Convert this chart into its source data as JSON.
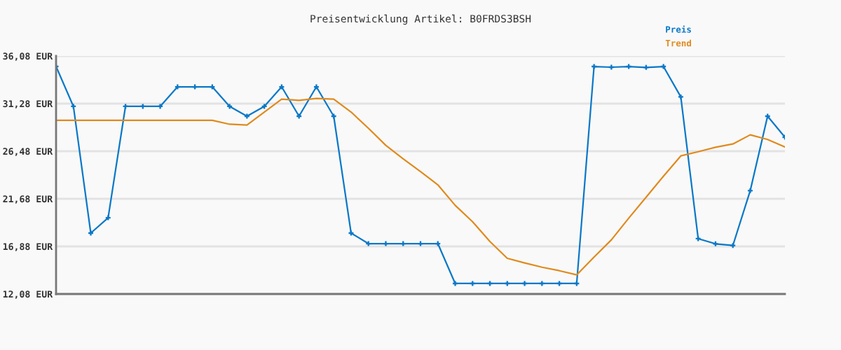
{
  "chart_data": {
    "type": "line",
    "title": "Preisentwicklung Artikel: B0FRDS3BSH",
    "categories": [
      null,
      null,
      null,
      null,
      null,
      null,
      null,
      null,
      null,
      null,
      null,
      null,
      null,
      null,
      null,
      null,
      null,
      null,
      null,
      null,
      null,
      null,
      null,
      null,
      null,
      null,
      null,
      null,
      null,
      null,
      null,
      null,
      null,
      null,
      null,
      null,
      null,
      null,
      null,
      null,
      null,
      null,
      null
    ],
    "series": [
      {
        "name": "Preis",
        "color": "#0a78c8",
        "marker": "cross",
        "values": [
          35.02,
          31.0,
          18.22,
          19.77,
          31.0,
          31.0,
          31.0,
          32.97,
          32.97,
          32.97,
          31.0,
          30.01,
          31.0,
          32.97,
          30.01,
          32.97,
          30.01,
          18.22,
          17.16,
          17.16,
          17.16,
          17.16,
          17.16,
          13.14,
          13.14,
          13.14,
          13.14,
          13.14,
          13.14,
          13.14,
          13.14,
          35.02,
          34.95,
          35.02,
          34.93,
          35.02,
          31.96,
          17.66,
          17.14,
          16.97,
          22.5,
          30.01,
          27.89
        ]
      },
      {
        "name": "Trend",
        "color": "#e08a1e",
        "marker": "none",
        "values": [
          29.6,
          29.6,
          29.6,
          29.6,
          29.6,
          29.6,
          29.6,
          29.6,
          29.6,
          29.6,
          29.2,
          29.12,
          30.43,
          31.73,
          31.61,
          31.8,
          31.73,
          30.43,
          28.79,
          27.07,
          25.72,
          24.43,
          23.09,
          21.02,
          19.37,
          17.37,
          15.68,
          15.21,
          14.78,
          14.43,
          14.01,
          15.8,
          17.54,
          19.73,
          21.84,
          23.96,
          26.01,
          26.43,
          26.88,
          27.21,
          28.13,
          27.66,
          26.9
        ]
      }
    ],
    "ylim": [
      12.08,
      36.08
    ],
    "yticks": [
      {
        "value": 12.08,
        "label": "12,08 EUR"
      },
      {
        "value": 16.88,
        "label": "16,88 EUR"
      },
      {
        "value": 21.68,
        "label": "21,68 EUR"
      },
      {
        "value": 26.48,
        "label": "26,48 EUR"
      },
      {
        "value": 31.28,
        "label": "31,28 EUR"
      },
      {
        "value": 36.08,
        "label": "36,08 EUR"
      }
    ],
    "grid": "y",
    "legend": "top right",
    "tick_labels": "y"
  }
}
